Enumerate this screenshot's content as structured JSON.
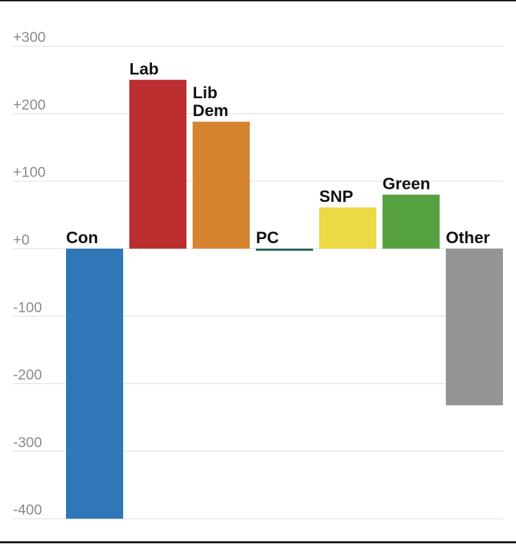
{
  "chart_data": {
    "type": "bar",
    "title": "",
    "xlabel": "",
    "ylabel": "",
    "ylim": [
      -400,
      300
    ],
    "grid": true,
    "categories": [
      "Con",
      "Lab",
      "Lib Dem",
      "PC",
      "SNP",
      "Green",
      "Other"
    ],
    "category_lines": [
      [
        "Con"
      ],
      [
        "Lab"
      ],
      [
        "Lib",
        "Dem"
      ],
      [
        "PC"
      ],
      [
        "SNP"
      ],
      [
        "Green"
      ],
      [
        "Other"
      ]
    ],
    "values": [
      -400,
      250,
      188,
      -3,
      61,
      80,
      -232
    ],
    "colors": [
      "#3077b7",
      "#bb2d2e",
      "#d6832f",
      "#25655d",
      "#ecd943",
      "#56a13f",
      "#959595"
    ],
    "yticks": [
      300,
      200,
      100,
      0,
      -100,
      -200,
      -300,
      -400
    ],
    "ytick_labels": [
      "+300",
      "+200",
      "+100",
      "+0",
      "-100",
      "-200",
      "-300",
      "-400"
    ]
  }
}
